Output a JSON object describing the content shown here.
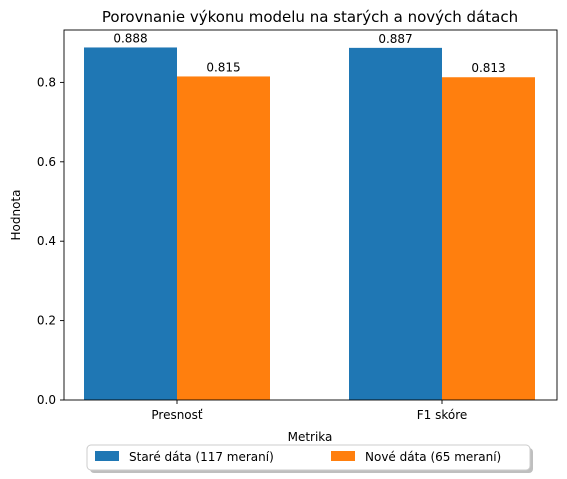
{
  "chart_data": {
    "type": "bar",
    "title": "Porovnanie výkonu modelu na starých a nových dátach",
    "xlabel": "Metrika",
    "ylabel": "Hodnota",
    "categories": [
      "Presnosť",
      "F1 skóre"
    ],
    "series": [
      {
        "name": "Staré dáta (117 meraní)",
        "color": "#1f77b4",
        "values": [
          0.888,
          0.887
        ],
        "labels": [
          "0.888",
          "0.887"
        ]
      },
      {
        "name": "Nové dáta (65 meraní)",
        "color": "#ff7f0e",
        "values": [
          0.815,
          0.813
        ],
        "labels": [
          "0.815",
          "0.813"
        ]
      }
    ],
    "ylim": [
      0,
      0.932
    ],
    "yticks": [
      0.0,
      0.2,
      0.4,
      0.6,
      0.8
    ],
    "ytick_labels": [
      "0.0",
      "0.2",
      "0.4",
      "0.6",
      "0.8"
    ],
    "grid": false,
    "legend_position": "bottom-center"
  }
}
